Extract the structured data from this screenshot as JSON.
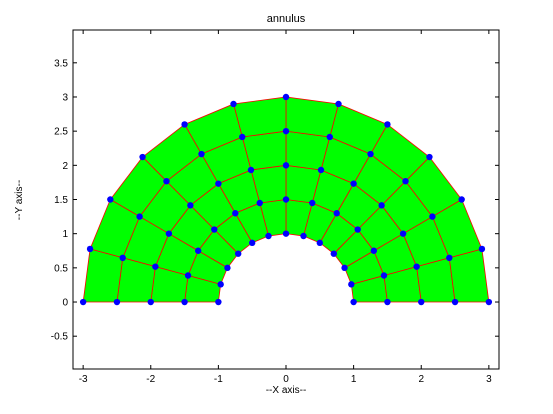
{
  "chart_data": {
    "type": "mesh",
    "title": "annulus",
    "xlabel": "--X axis--",
    "ylabel": "--Y axis--",
    "xlim": [
      -3.15,
      3.15
    ],
    "ylim": [
      -0.98,
      3.98
    ],
    "xticks": [
      -3,
      -2,
      -1,
      0,
      1,
      2,
      3
    ],
    "yticks": [
      -0.5,
      0,
      0.5,
      1,
      1.5,
      2,
      2.5,
      3,
      3.5
    ],
    "xtick_labels": [
      "-3",
      "-2",
      "-1",
      "0",
      "1",
      "2",
      "3"
    ],
    "ytick_labels": [
      "-0.5",
      "0",
      "0.5",
      "1",
      "1.5",
      "2",
      "2.5",
      "3",
      "3.5"
    ],
    "grid": false,
    "geometry": {
      "shape": "half-annulus",
      "inner_radius": 1,
      "outer_radius": 3,
      "angle_range_deg": [
        0,
        180
      ]
    },
    "mesh": {
      "radial_rings": 5,
      "angular_divisions": 12,
      "node_radii": [
        1.0,
        1.5,
        2.0,
        2.5,
        3.0
      ],
      "node_angles_deg": [
        0,
        15,
        30,
        45,
        60,
        75,
        90,
        105,
        120,
        135,
        150,
        165,
        180
      ],
      "node_count": 65,
      "element_count": 48
    },
    "colors": {
      "fill": "#00ff00",
      "edges": "#ff0000",
      "nodes": "#0000ff",
      "axes": "#000000",
      "background": "#ffffff"
    }
  }
}
